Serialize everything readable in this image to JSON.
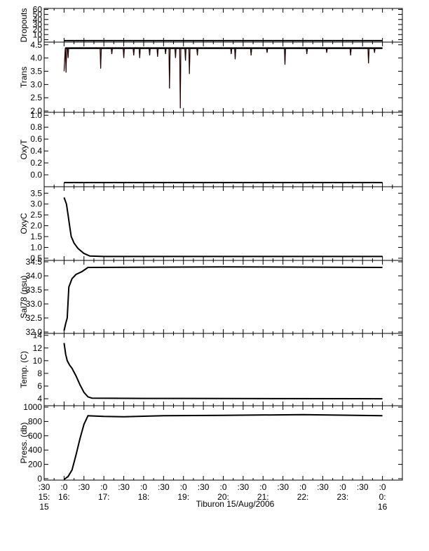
{
  "x_axis": {
    "range_hours": [
      15.5,
      24.5
    ],
    "major_ticks": [
      {
        "hour": 15.5,
        "top": ":30",
        "mid": "15:",
        "bot": "15"
      },
      {
        "hour": 16.0,
        "top": ":0",
        "mid": "16:",
        "bot": ""
      },
      {
        "hour": 16.5,
        "top": ":30",
        "mid": "",
        "bot": ""
      },
      {
        "hour": 17.0,
        "top": ":0",
        "mid": "17:",
        "bot": ""
      },
      {
        "hour": 17.5,
        "top": ":30",
        "mid": "",
        "bot": ""
      },
      {
        "hour": 18.0,
        "top": ":0",
        "mid": "18:",
        "bot": ""
      },
      {
        "hour": 18.5,
        "top": ":30",
        "mid": "",
        "bot": ""
      },
      {
        "hour": 19.0,
        "top": ":0",
        "mid": "19:",
        "bot": ""
      },
      {
        "hour": 19.5,
        "top": ":30",
        "mid": "",
        "bot": ""
      },
      {
        "hour": 20.0,
        "top": ":0",
        "mid": "20:",
        "bot": ""
      },
      {
        "hour": 20.5,
        "top": ":30",
        "mid": "",
        "bot": ""
      },
      {
        "hour": 21.0,
        "top": ":0",
        "mid": "21:",
        "bot": ""
      },
      {
        "hour": 21.5,
        "top": ":30",
        "mid": "",
        "bot": ""
      },
      {
        "hour": 22.0,
        "top": ":0",
        "mid": "22:",
        "bot": ""
      },
      {
        "hour": 22.5,
        "top": ":30",
        "mid": "",
        "bot": ""
      },
      {
        "hour": 23.0,
        "top": ":0",
        "mid": "23:",
        "bot": ""
      },
      {
        "hour": 23.5,
        "top": ":30",
        "mid": "",
        "bot": ""
      },
      {
        "hour": 24.0,
        "top": ":0",
        "mid": "0:",
        "bot": "16"
      }
    ],
    "title": "Tiburon 15/Aug/2006"
  },
  "chart_data": [
    {
      "type": "line",
      "ylabel": "Dropouts",
      "ylim": [
        -5,
        62
      ],
      "yticks": [
        0,
        10,
        20,
        30,
        40,
        50,
        60
      ],
      "series": [
        {
          "color": "#000000",
          "points": [
            [
              16.0,
              -2
            ],
            [
              24.0,
              -2
            ]
          ]
        }
      ]
    },
    {
      "type": "line",
      "ylabel": "Trans",
      "ylim": [
        1.95,
        4.6
      ],
      "yticks": [
        2.0,
        2.5,
        3.0,
        3.5,
        4.0,
        4.5
      ],
      "baseline": 4.37,
      "spikes": [
        [
          16.05,
          3.45
        ],
        [
          16.1,
          4.0
        ],
        [
          16.92,
          3.6
        ],
        [
          17.2,
          4.15
        ],
        [
          17.5,
          4.0
        ],
        [
          17.75,
          4.1
        ],
        [
          17.9,
          4.0
        ],
        [
          18.15,
          4.1
        ],
        [
          18.35,
          4.05
        ],
        [
          18.55,
          4.15
        ],
        [
          18.65,
          2.85
        ],
        [
          18.8,
          4.0
        ],
        [
          18.92,
          2.1
        ],
        [
          19.05,
          3.9
        ],
        [
          19.15,
          3.4
        ],
        [
          19.35,
          4.1
        ],
        [
          20.2,
          4.15
        ],
        [
          20.3,
          3.95
        ],
        [
          20.7,
          4.1
        ],
        [
          21.1,
          4.2
        ],
        [
          21.55,
          3.75
        ],
        [
          22.1,
          4.15
        ],
        [
          22.6,
          4.2
        ],
        [
          23.2,
          4.1
        ],
        [
          23.65,
          3.8
        ],
        [
          23.8,
          4.2
        ]
      ],
      "series": [
        {
          "color": "#000000"
        },
        {
          "color": "#cc0000"
        }
      ]
    },
    {
      "type": "line",
      "ylabel": "OxyT",
      "ylim": [
        -0.2,
        1.05
      ],
      "yticks": [
        0.0,
        0.2,
        0.4,
        0.6,
        0.8,
        1.0
      ],
      "series": [
        {
          "color": "#000000",
          "points": [
            [
              16.0,
              -0.13
            ],
            [
              24.0,
              -0.13
            ]
          ]
        }
      ]
    },
    {
      "type": "line",
      "ylabel": "OxyC",
      "ylim": [
        0.4,
        3.8
      ],
      "yticks": [
        0.5,
        1.0,
        1.5,
        2.0,
        2.5,
        3.0,
        3.5
      ],
      "series": [
        {
          "color": "#000000",
          "points": [
            [
              16.0,
              3.3
            ],
            [
              16.06,
              3.0
            ],
            [
              16.1,
              2.5
            ],
            [
              16.14,
              2.0
            ],
            [
              16.18,
              1.5
            ],
            [
              16.25,
              1.2
            ],
            [
              16.35,
              0.95
            ],
            [
              16.5,
              0.72
            ],
            [
              16.65,
              0.6
            ],
            [
              17.0,
              0.58
            ],
            [
              24.0,
              0.58
            ]
          ]
        }
      ]
    },
    {
      "type": "line",
      "ylabel": "Sal78 (psu)",
      "ylim": [
        31.95,
        34.55
      ],
      "yticks": [
        32.0,
        32.5,
        33.0,
        33.5,
        34.0,
        34.5
      ],
      "series": [
        {
          "color": "#000000",
          "points": [
            [
              16.0,
              32.05
            ],
            [
              16.04,
              32.3
            ],
            [
              16.08,
              32.5
            ],
            [
              16.12,
              33.6
            ],
            [
              16.2,
              33.9
            ],
            [
              16.3,
              34.05
            ],
            [
              16.45,
              34.15
            ],
            [
              16.6,
              34.3
            ],
            [
              20.0,
              34.32
            ],
            [
              24.0,
              34.3
            ]
          ]
        }
      ]
    },
    {
      "type": "line",
      "ylabel": "Temp. (C)",
      "ylim": [
        2.9,
        14.3
      ],
      "yticks": [
        4,
        6,
        8,
        10,
        12,
        14
      ],
      "series": [
        {
          "color": "#000000",
          "points": [
            [
              16.0,
              12.8
            ],
            [
              16.04,
              11.0
            ],
            [
              16.08,
              10.0
            ],
            [
              16.14,
              9.3
            ],
            [
              16.2,
              8.8
            ],
            [
              16.3,
              7.6
            ],
            [
              16.4,
              6.2
            ],
            [
              16.5,
              5.0
            ],
            [
              16.6,
              4.3
            ],
            [
              16.7,
              4.1
            ],
            [
              18.0,
              4.05
            ],
            [
              24.0,
              4.0
            ]
          ]
        }
      ]
    },
    {
      "type": "line",
      "ylabel": "Press. (db)",
      "ylim": [
        -20,
        1020
      ],
      "yticks": [
        0,
        200,
        400,
        600,
        800,
        1000
      ],
      "series": [
        {
          "color": "#000000",
          "points": [
            [
              16.0,
              -10
            ],
            [
              16.1,
              30
            ],
            [
              16.2,
              120
            ],
            [
              16.3,
              330
            ],
            [
              16.4,
              560
            ],
            [
              16.5,
              760
            ],
            [
              16.6,
              880
            ],
            [
              17.0,
              870
            ],
            [
              17.5,
              865
            ],
            [
              18.5,
              880
            ],
            [
              20.0,
              885
            ],
            [
              22.0,
              895
            ],
            [
              24.0,
              880
            ]
          ]
        }
      ]
    }
  ]
}
